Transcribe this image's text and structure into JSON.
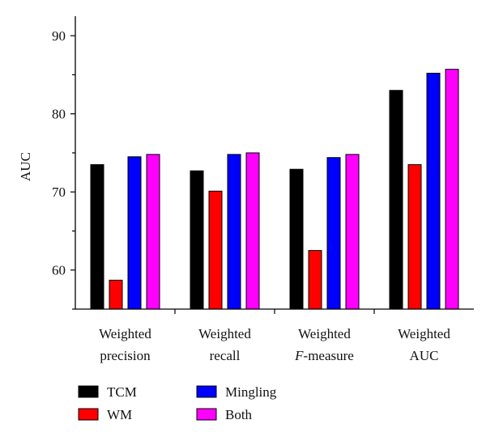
{
  "chart_data": {
    "type": "bar",
    "title": "",
    "xlabel": "",
    "ylabel": "AUC",
    "ylim": [
      55,
      92.5
    ],
    "yticks": [
      "60",
      "70",
      "80",
      "90"
    ],
    "categories": [
      {
        "line1": "Weighted",
        "line2_italic": "",
        "line2": "precision"
      },
      {
        "line1": "Weighted",
        "line2_italic": "",
        "line2": "recall"
      },
      {
        "line1": "Weighted",
        "line2_italic": "F",
        "line2": "-measure"
      },
      {
        "line1": "Weighted",
        "line2_italic": "",
        "line2": "AUC"
      }
    ],
    "series": [
      {
        "name": "TCM",
        "color": "#000000",
        "values": [
          73.5,
          72.7,
          72.9,
          83.0
        ]
      },
      {
        "name": "WM",
        "color": "#ff0000",
        "values": [
          58.7,
          70.1,
          62.5,
          73.5
        ]
      },
      {
        "name": "Mingling",
        "color": "#0000ff",
        "values": [
          74.5,
          74.8,
          74.4,
          85.2
        ]
      },
      {
        "name": "Both",
        "color": "#ff00ff",
        "values": [
          74.8,
          75.0,
          74.8,
          85.7
        ]
      }
    ],
    "legend_position": "bottom-left"
  }
}
